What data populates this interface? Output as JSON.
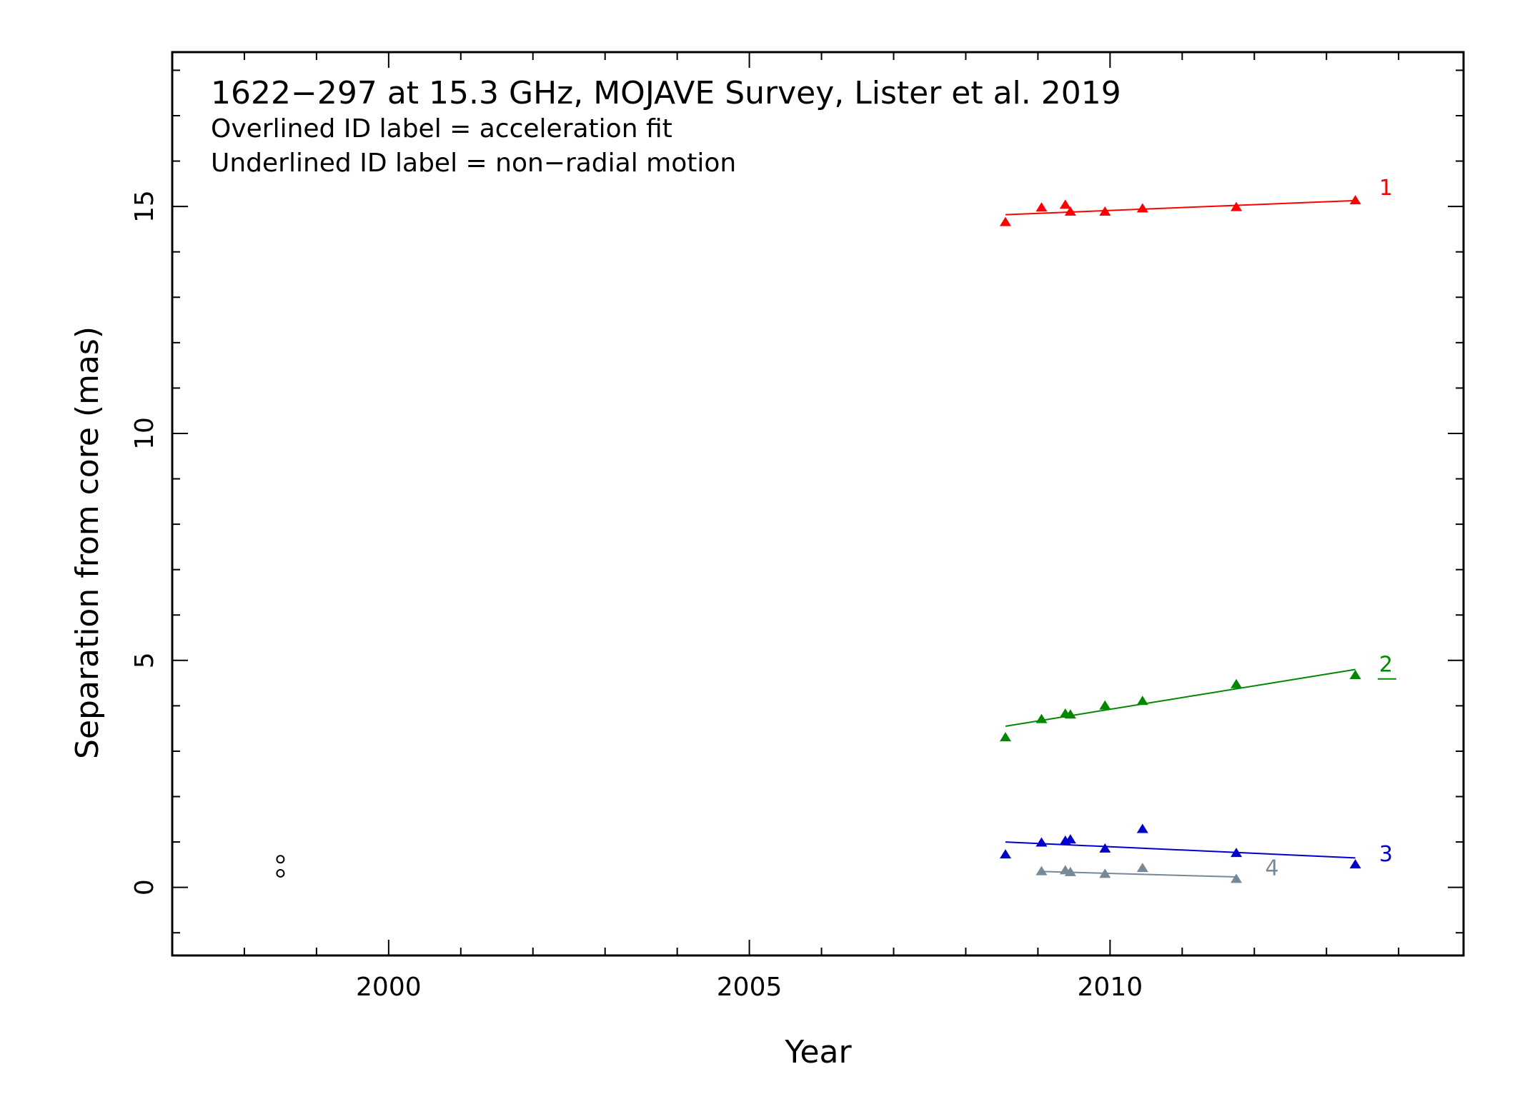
{
  "chart_data": {
    "type": "scatter",
    "title": "1622−297 at 15.3 GHz, MOJAVE Survey, Lister et al. 2019",
    "subtitle_lines": [
      "Overlined ID label = acceleration fit",
      "Underlined ID label = non−radial motion"
    ],
    "xlabel": "Year",
    "ylabel": "Separation from core (mas)",
    "xlim": [
      1997.0,
      2014.9
    ],
    "ylim": [
      -1.5,
      18.4
    ],
    "x_ticks": [
      {
        "value": 2000,
        "label": "2000"
      },
      {
        "value": 2005,
        "label": "2005"
      },
      {
        "value": 2010,
        "label": "2010"
      }
    ],
    "y_ticks": [
      {
        "value": 0,
        "label": "0"
      },
      {
        "value": 5,
        "label": "5"
      },
      {
        "value": 10,
        "label": "10"
      },
      {
        "value": 15,
        "label": "15"
      }
    ],
    "x_minor_step": 1,
    "y_minor_step": 1,
    "grid": false,
    "series": [
      {
        "name": "1",
        "color": "#ff0000",
        "marker": "triangle",
        "label_style": "plain",
        "points": [
          [
            2008.55,
            14.65
          ],
          [
            2009.05,
            14.97
          ],
          [
            2009.38,
            15.03
          ],
          [
            2009.45,
            14.88
          ],
          [
            2009.93,
            14.88
          ],
          [
            2010.45,
            14.95
          ],
          [
            2011.75,
            14.98
          ],
          [
            2013.4,
            15.13
          ]
        ],
        "fit": [
          [
            2008.55,
            14.82
          ],
          [
            2013.4,
            15.13
          ]
        ],
        "label_at": [
          2013.73,
          15.25
        ]
      },
      {
        "name": "2",
        "color": "#008800",
        "marker": "triangle",
        "label_style": "underlined",
        "points": [
          [
            2008.55,
            3.3
          ],
          [
            2009.05,
            3.7
          ],
          [
            2009.38,
            3.82
          ],
          [
            2009.45,
            3.8
          ],
          [
            2009.93,
            4.0
          ],
          [
            2010.45,
            4.1
          ],
          [
            2011.75,
            4.47
          ],
          [
            2013.4,
            4.67
          ]
        ],
        "fit": [
          [
            2008.55,
            3.55
          ],
          [
            2013.4,
            4.8
          ]
        ],
        "label_at": [
          2013.73,
          4.75
        ]
      },
      {
        "name": "3",
        "color": "#0000cc",
        "marker": "triangle",
        "label_style": "plain",
        "points": [
          [
            2008.55,
            0.72
          ],
          [
            2009.05,
            0.98
          ],
          [
            2009.38,
            1.02
          ],
          [
            2009.45,
            1.05
          ],
          [
            2009.93,
            0.85
          ],
          [
            2010.45,
            1.28
          ],
          [
            2011.75,
            0.75
          ],
          [
            2013.4,
            0.5
          ]
        ],
        "fit": [
          [
            2008.55,
            1.0
          ],
          [
            2013.4,
            0.65
          ]
        ],
        "label_at": [
          2013.73,
          0.58
        ]
      },
      {
        "name": "4",
        "color": "#778899",
        "marker": "triangle",
        "label_style": "plain",
        "points": [
          [
            2009.05,
            0.35
          ],
          [
            2009.38,
            0.37
          ],
          [
            2009.45,
            0.33
          ],
          [
            2009.93,
            0.29
          ],
          [
            2010.45,
            0.42
          ],
          [
            2011.75,
            0.18
          ]
        ],
        "fit": [
          [
            2009.05,
            0.35
          ],
          [
            2011.75,
            0.23
          ]
        ],
        "label_at": [
          2012.15,
          0.27
        ]
      },
      {
        "name": "",
        "color": "#000000",
        "marker": "circle",
        "label_style": "plain",
        "points": [
          [
            1998.5,
            0.62
          ],
          [
            1998.5,
            0.31
          ]
        ],
        "fit": [],
        "label_at": null
      }
    ]
  }
}
